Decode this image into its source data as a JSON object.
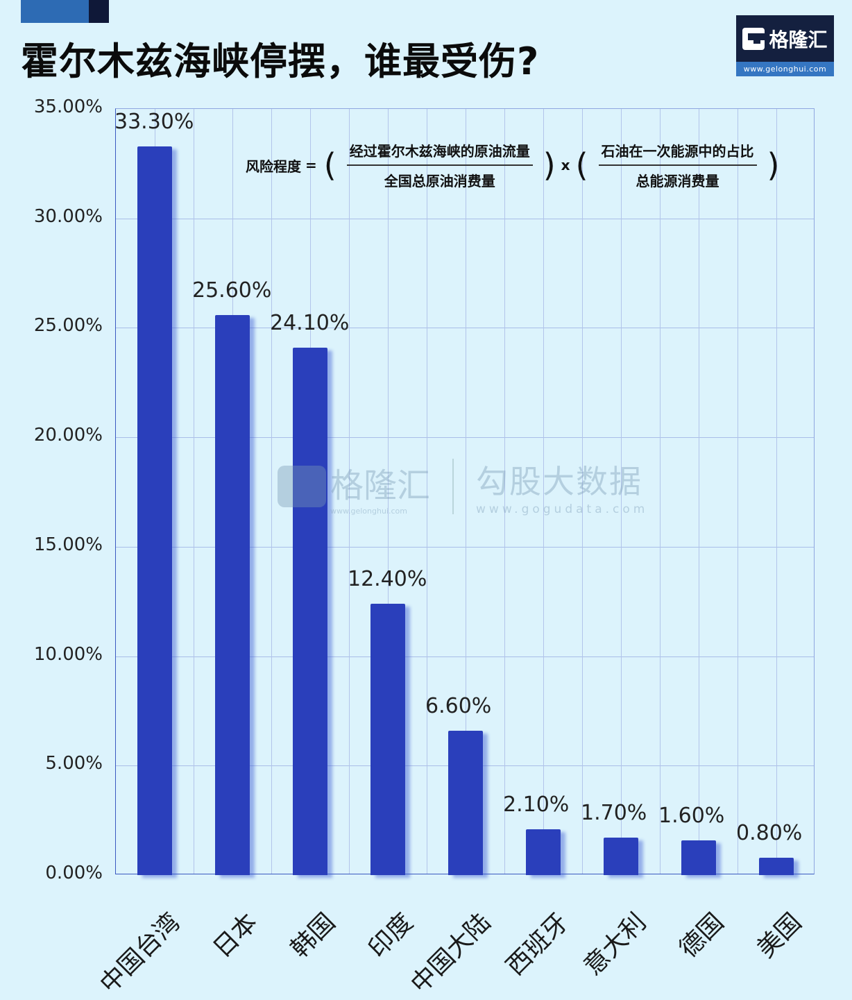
{
  "header": {
    "title": "霍尔木兹海峡停摆，谁最受伤?",
    "logo": {
      "name": "格隆汇",
      "url": "www.gelonghui.com"
    }
  },
  "formula": {
    "lhs": "风险程度",
    "equals": "=",
    "open": "(",
    "close": ")",
    "times": "x",
    "frac1": {
      "num": "经过霍尔木兹海峡的原油流量",
      "den": "全国总原油消费量"
    },
    "frac2": {
      "num": "石油在一次能源中的占比",
      "den": "总能源消费量"
    }
  },
  "watermark": {
    "left_cn": "格隆汇",
    "left_url": "www.gelonghui.com",
    "right_cn": "勾股大数据",
    "right_url": "www.gogudata.com"
  },
  "colors": {
    "bar": "#2a3fbb",
    "background": "#dcf3fc",
    "grid": "#a9bde8"
  },
  "chart_data": {
    "type": "bar",
    "title": "霍尔木兹海峡停摆，谁最受伤?",
    "xlabel": "",
    "ylabel": "风险程度",
    "categories": [
      "中国台湾",
      "日本",
      "韩国",
      "印度",
      "中国大陆",
      "西班牙",
      "意大利",
      "德国",
      "美国"
    ],
    "values": [
      33.3,
      25.6,
      24.1,
      12.4,
      6.6,
      2.1,
      1.7,
      1.6,
      0.8
    ],
    "value_labels": [
      "33.30%",
      "25.60%",
      "24.10%",
      "12.40%",
      "6.60%",
      "2.10%",
      "1.70%",
      "1.60%",
      "0.80%"
    ],
    "ylim": [
      0,
      35
    ],
    "yticks": [
      "0.00%",
      "5.00%",
      "10.00%",
      "15.00%",
      "20.00%",
      "25.00%",
      "30.00%",
      "35.00%"
    ],
    "grid": true,
    "legend": null
  }
}
